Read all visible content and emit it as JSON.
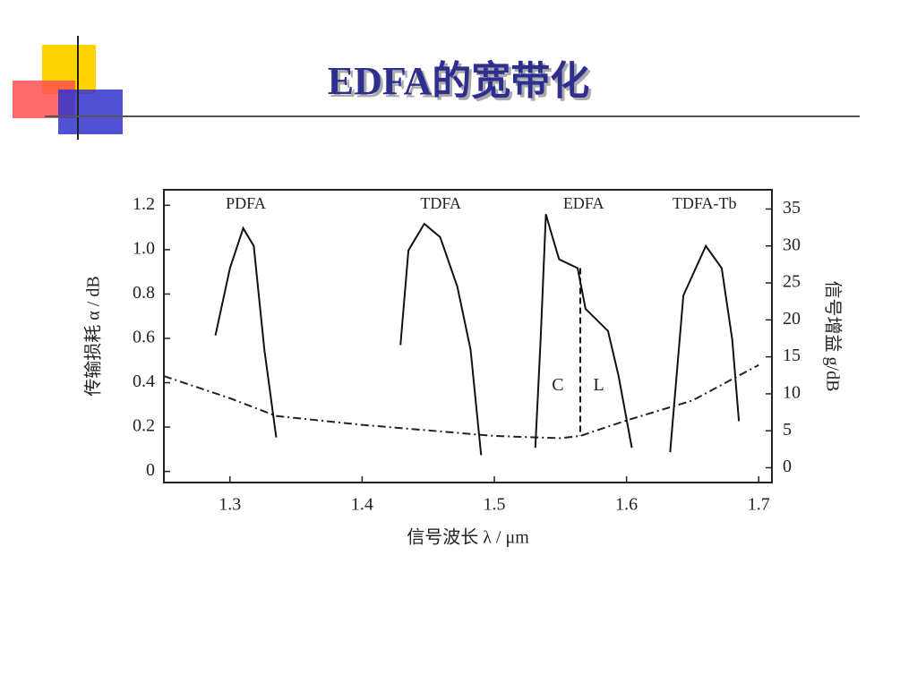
{
  "title": "EDFA的宽带化",
  "chart_data": {
    "type": "line",
    "xlabel": "信号波长 λ / μm",
    "ylabel": "传输损耗 α / dB",
    "y2label": "信号增益 g/dB",
    "xlim": [
      1.25,
      1.71
    ],
    "xticks": [
      1.3,
      1.4,
      1.5,
      1.6,
      1.7
    ],
    "ylim": [
      -0.05,
      1.27
    ],
    "yticks": [
      0,
      0.2,
      0.4,
      0.6,
      0.8,
      {
        "value": 1,
        "label": "1.0"
      },
      1.2
    ],
    "y2lim": [
      -2,
      37.6
    ],
    "y2ticks": [
      0,
      5,
      10,
      15,
      20,
      25,
      30,
      35
    ],
    "series": [
      {
        "name": "传输损耗",
        "color": "#222222",
        "axis": "y",
        "dash": "dashdot",
        "x": [
          1.25,
          1.3,
          1.335,
          1.4,
          1.45,
          1.5,
          1.55,
          1.565,
          1.6,
          1.65,
          1.7
        ],
        "values": [
          0.43,
          0.33,
          0.25,
          0.21,
          0.185,
          0.16,
          0.15,
          0.16,
          0.23,
          0.32,
          0.48
        ]
      },
      {
        "name": "PDFA",
        "color": "#111111",
        "axis": "y2",
        "x": [
          1.289,
          1.3,
          1.31,
          1.318,
          1.326,
          1.335
        ],
        "values": [
          17.9,
          27,
          32.4,
          30,
          16,
          4.1
        ]
      },
      {
        "name": "TDFA",
        "color": "#111111",
        "axis": "y2",
        "x": [
          1.429,
          1.435,
          1.447,
          1.459,
          1.472,
          1.482,
          1.49
        ],
        "values": [
          16.6,
          29.4,
          33,
          31.2,
          24.5,
          16,
          1.7
        ]
      },
      {
        "name": "EDFA",
        "color": "#111111",
        "axis": "y2",
        "x": [
          1.531,
          1.535,
          1.539,
          1.543,
          1.549,
          1.563,
          1.569,
          1.586,
          1.594,
          1.604
        ],
        "values": [
          2.7,
          17.3,
          34.3,
          31.8,
          28.2,
          27,
          21.5,
          18.5,
          12.4,
          2.7
        ]
      },
      {
        "name": "TDFA-Tb",
        "color": "#111111",
        "axis": "y2",
        "x": [
          1.633,
          1.643,
          1.66,
          1.672,
          1.68,
          1.685
        ],
        "values": [
          2.1,
          23.3,
          30,
          27,
          17.3,
          6.3
        ]
      }
    ],
    "band_split": 1.565,
    "annotations": [
      {
        "text": "C",
        "x": 1.548,
        "y": 11
      },
      {
        "text": "L",
        "x": 1.579,
        "y": 11
      }
    ]
  }
}
